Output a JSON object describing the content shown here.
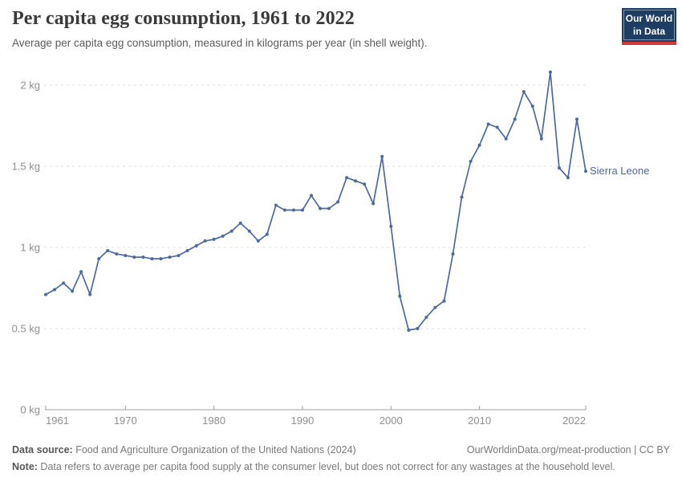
{
  "header": {
    "title": "Per capita egg consumption, 1961 to 2022",
    "subtitle": "Average per capita egg consumption, measured in kilograms per year (in shell weight).",
    "logo_line1": "Our World",
    "logo_line2": "in Data"
  },
  "chart_data": {
    "type": "line",
    "title": "Per capita egg consumption, 1961 to 2022",
    "xlabel": "",
    "ylabel": "",
    "grid": true,
    "legend_position": "end-of-line-label",
    "xlim": [
      1961,
      2022
    ],
    "ylim": [
      0,
      2.15
    ],
    "xticks": [
      {
        "v": 1961,
        "label": "1961"
      },
      {
        "v": 1970,
        "label": "1970"
      },
      {
        "v": 1980,
        "label": "1980"
      },
      {
        "v": 1990,
        "label": "1990"
      },
      {
        "v": 2000,
        "label": "2000"
      },
      {
        "v": 2010,
        "label": "2010"
      },
      {
        "v": 2022,
        "label": "2022"
      }
    ],
    "yticks": [
      {
        "v": 0,
        "label": "0 kg"
      },
      {
        "v": 0.5,
        "label": "0.5 kg"
      },
      {
        "v": 1,
        "label": "1 kg"
      },
      {
        "v": 1.5,
        "label": "1.5 kg"
      },
      {
        "v": 2,
        "label": "2 kg"
      }
    ],
    "x": [
      1961,
      1962,
      1963,
      1964,
      1965,
      1966,
      1967,
      1968,
      1969,
      1970,
      1971,
      1972,
      1973,
      1974,
      1975,
      1976,
      1977,
      1978,
      1979,
      1980,
      1981,
      1982,
      1983,
      1984,
      1985,
      1986,
      1987,
      1988,
      1989,
      1990,
      1991,
      1992,
      1993,
      1994,
      1995,
      1996,
      1997,
      1998,
      1999,
      2000,
      2001,
      2002,
      2003,
      2004,
      2005,
      2006,
      2007,
      2008,
      2009,
      2010,
      2011,
      2012,
      2013,
      2014,
      2015,
      2016,
      2017,
      2018,
      2019,
      2020,
      2021,
      2022
    ],
    "series": [
      {
        "name": "Sierra Leone",
        "values": [
          0.71,
          0.74,
          0.78,
          0.73,
          0.85,
          0.71,
          0.93,
          0.98,
          0.96,
          0.95,
          0.94,
          0.94,
          0.93,
          0.93,
          0.94,
          0.95,
          0.98,
          1.01,
          1.04,
          1.05,
          1.07,
          1.1,
          1.15,
          1.1,
          1.04,
          1.08,
          1.26,
          1.23,
          1.23,
          1.23,
          1.32,
          1.24,
          1.24,
          1.28,
          1.43,
          1.41,
          1.39,
          1.27,
          1.56,
          1.13,
          0.7,
          0.49,
          0.5,
          0.57,
          0.63,
          0.67,
          0.96,
          1.31,
          1.53,
          1.63,
          1.76,
          1.74,
          1.67,
          1.79,
          1.96,
          1.87,
          1.67,
          2.08,
          1.49,
          1.43,
          1.79,
          1.47
        ]
      }
    ],
    "colors": {
      "line": "#4c6a9c",
      "entity_label": "#4c6a9c",
      "grid": "#dcdcdc",
      "axis": "#a3a3a3",
      "tick_text": "#8f8f8f"
    }
  },
  "footer": {
    "datasource_label": "Data source:",
    "datasource_text": " Food and Agriculture Organization of the United Nations (2024)",
    "link": "OurWorldinData.org/meat-production | CC BY",
    "note_label": "Note:",
    "note_text": " Data refers to average per capita food supply at the consumer level, but does not correct for any wastages at the household level."
  }
}
